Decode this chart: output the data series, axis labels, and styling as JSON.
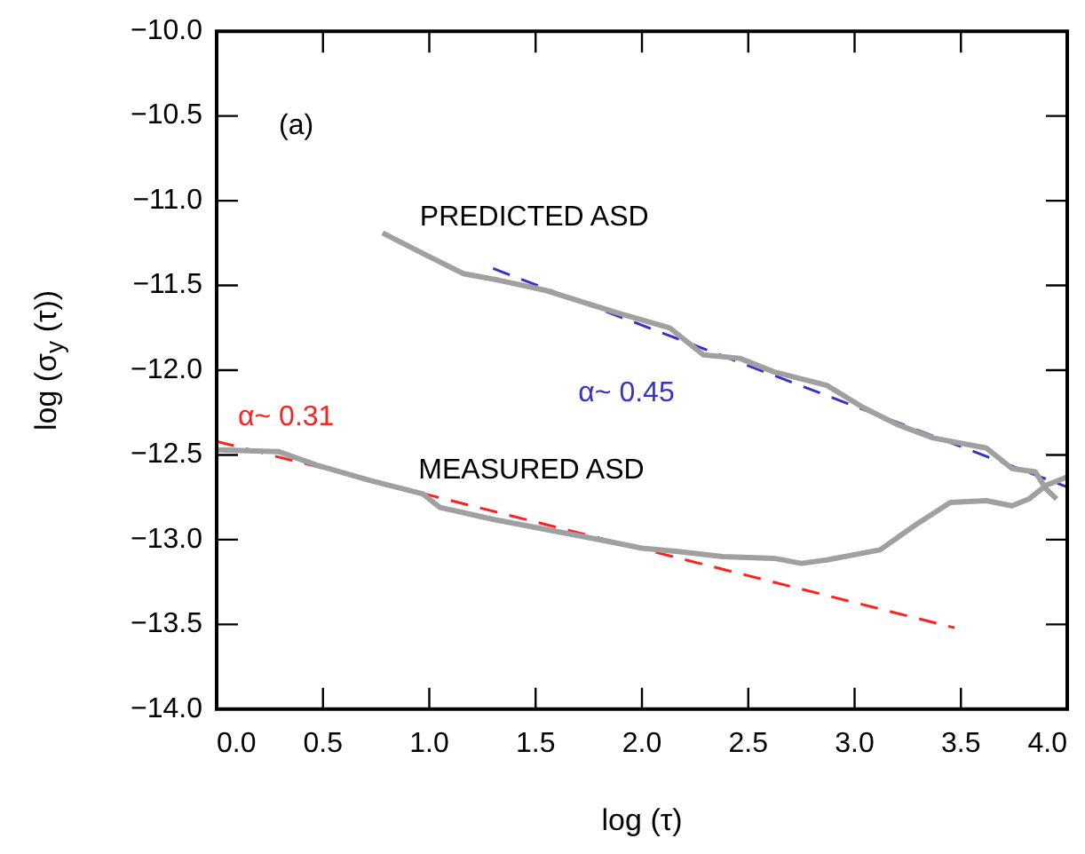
{
  "chart_data": {
    "type": "line",
    "xlabel": "log (τ)",
    "ylabel": "log (σ$_{y}$ (τ))",
    "xlim": [
      0,
      4
    ],
    "xticks": [
      {
        "value": 0,
        "label": "0.0"
      },
      0.5,
      {
        "value": 1,
        "label": "1.0"
      },
      1.5,
      {
        "value": 2,
        "label": "2.0"
      },
      2.5,
      {
        "value": 3,
        "label": "3.0"
      },
      3.5,
      {
        "value": 4,
        "label": "4.0"
      }
    ],
    "ylim": [
      -14,
      -10
    ],
    "yticks": [
      {
        "value": -14,
        "label": "−14.0"
      },
      {
        "value": -13.5,
        "label": "−13.5"
      },
      {
        "value": -13,
        "label": "−13.0"
      },
      {
        "value": -12.5,
        "label": "−12.5"
      },
      {
        "value": -12,
        "label": "−12.0"
      },
      {
        "value": -11.5,
        "label": "−11.5"
      },
      {
        "value": -11,
        "label": "−11.0"
      },
      {
        "value": -10.5,
        "label": "−10.5"
      },
      {
        "value": -10,
        "label": "−10.0"
      }
    ],
    "grid": false,
    "legend": false,
    "marker": "none",
    "annotations": [
      "(a)"
    ],
    "series": [
      {
        "name": "PREDICTED ASD",
        "color": "#a0a0a0",
        "line_style": "solid",
        "x": [
          0.78,
          1.0,
          1.16,
          1.33,
          1.55,
          1.88,
          2.13,
          2.29,
          2.46,
          2.62,
          2.87,
          3.04,
          3.2,
          3.37,
          3.62,
          3.74,
          3.85,
          3.9,
          3.95
        ],
        "values": [
          -11.19,
          -11.33,
          -11.43,
          -11.47,
          -11.53,
          -11.66,
          -11.75,
          -11.91,
          -11.93,
          -12.01,
          -12.09,
          -12.22,
          -12.32,
          -12.4,
          -12.46,
          -12.58,
          -12.6,
          -12.7,
          -12.76
        ]
      },
      {
        "name": "MEASURED ASD",
        "color": "#a0a0a0",
        "line_style": "solid",
        "x": [
          0,
          0.29,
          0.47,
          0.72,
          0.97,
          1.05,
          1.3,
          1.55,
          1.84,
          2.0,
          2.17,
          2.38,
          2.62,
          2.75,
          2.87,
          3.12,
          3.29,
          3.45,
          3.62,
          3.74,
          3.82,
          3.9,
          4.0
        ],
        "values": [
          -12.47,
          -12.48,
          -12.56,
          -12.65,
          -12.73,
          -12.81,
          -12.88,
          -12.94,
          -13.01,
          -13.05,
          -13.07,
          -13.1,
          -13.11,
          -13.14,
          -13.12,
          -13.06,
          -12.91,
          -12.78,
          -12.77,
          -12.8,
          -12.76,
          -12.68,
          -12.63
        ]
      },
      {
        "name": "α~ 0.45",
        "color": "#3333cc",
        "line_style": "dashed",
        "x": [
          1.3,
          4.0
        ],
        "values": [
          -11.4,
          -12.69
        ]
      },
      {
        "name": "α~ 0.31",
        "color": "#ff2020",
        "line_style": "dashed",
        "x": [
          0,
          3.47
        ],
        "values": [
          -12.42,
          -13.52
        ]
      }
    ]
  }
}
